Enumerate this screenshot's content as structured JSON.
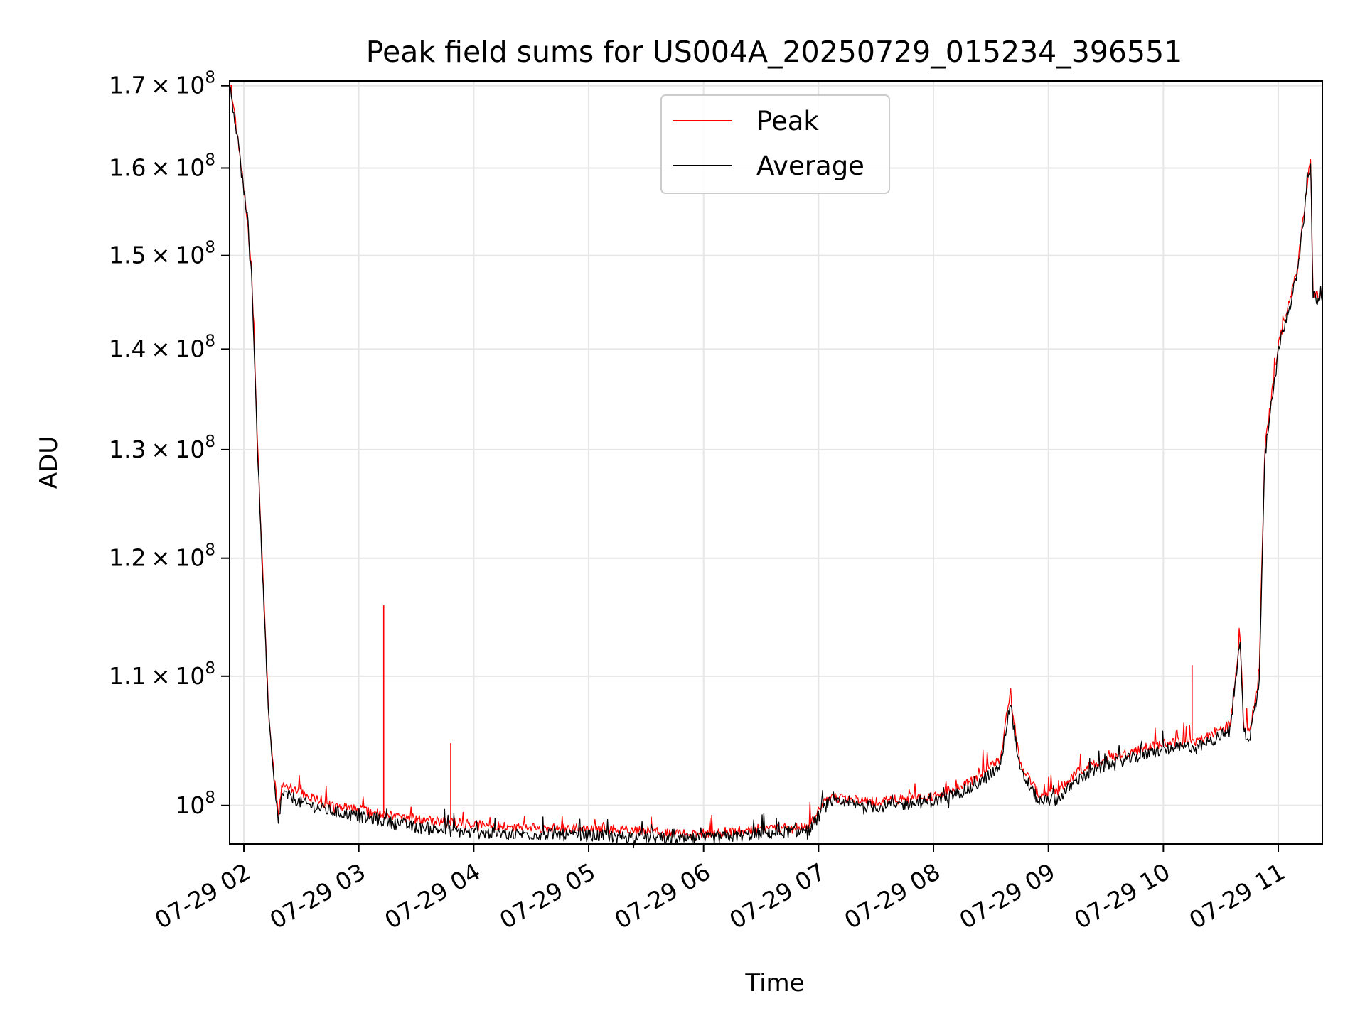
{
  "chart_data": {
    "type": "line",
    "title": "Peak field sums for US004A_20250729_015234_396551",
    "xlabel": "Time",
    "ylabel": "ADU",
    "yscale": "log",
    "ylim": [
      97200000,
      170600000
    ],
    "xlim": [
      "07-29 01:52:34",
      "07-29 11:23:00"
    ],
    "grid": true,
    "legend": "upper center",
    "x_ticks": [
      {
        "value": "07-29 02:00",
        "label": "07-29 02"
      },
      {
        "value": "07-29 03:00",
        "label": "07-29 03"
      },
      {
        "value": "07-29 04:00",
        "label": "07-29 04"
      },
      {
        "value": "07-29 05:00",
        "label": "07-29 05"
      },
      {
        "value": "07-29 06:00",
        "label": "07-29 06"
      },
      {
        "value": "07-29 07:00",
        "label": "07-29 07"
      },
      {
        "value": "07-29 08:00",
        "label": "07-29 08"
      },
      {
        "value": "07-29 09:00",
        "label": "07-29 09"
      },
      {
        "value": "07-29 10:00",
        "label": "07-29 10"
      },
      {
        "value": "07-29 11:00",
        "label": "07-29 11"
      }
    ],
    "y_ticks": [
      {
        "value": 100000000,
        "mant": "",
        "exp": "8"
      },
      {
        "value": 110000000,
        "mant": "1.1",
        "exp": "8"
      },
      {
        "value": 120000000,
        "mant": "1.2",
        "exp": "8"
      },
      {
        "value": 130000000,
        "mant": "1.3",
        "exp": "8"
      },
      {
        "value": 140000000,
        "mant": "1.4",
        "exp": "8"
      },
      {
        "value": 150000000,
        "mant": "1.5",
        "exp": "8"
      },
      {
        "value": 160000000,
        "mant": "1.6",
        "exp": "8"
      },
      {
        "value": 170000000,
        "mant": "1.7",
        "exp": "8"
      }
    ],
    "x": [
      "07-29 01:53",
      "07-29 01:57",
      "07-29 02:00",
      "07-29 02:04",
      "07-29 02:07",
      "07-29 02:10",
      "07-29 02:13",
      "07-29 02:16",
      "07-29 02:18",
      "07-29 02:20",
      "07-29 02:25",
      "07-29 02:30",
      "07-29 02:45",
      "07-29 03:00",
      "07-29 03:15",
      "07-29 03:30",
      "07-29 03:45",
      "07-29 04:00",
      "07-29 04:30",
      "07-29 05:00",
      "07-29 05:30",
      "07-29 05:45",
      "07-29 06:00",
      "07-29 06:30",
      "07-29 06:55",
      "07-29 07:05",
      "07-29 07:30",
      "07-29 08:00",
      "07-29 08:20",
      "07-29 08:35",
      "07-29 08:40",
      "07-29 08:45",
      "07-29 08:55",
      "07-29 09:05",
      "07-29 09:15",
      "07-29 09:30",
      "07-29 10:00",
      "07-29 10:20",
      "07-29 10:35",
      "07-29 10:40",
      "07-29 10:42",
      "07-29 10:45",
      "07-29 10:50",
      "07-29 10:53",
      "07-29 11:00",
      "07-29 11:10",
      "07-29 11:17",
      "07-29 11:18",
      "07-29 11:23"
    ],
    "series": [
      {
        "name": "Peak",
        "color": "#ff0000",
        "values": [
          170200000,
          163500000,
          157500000,
          148800000,
          131000000,
          118000000,
          107000000,
          101800000,
          99500000,
          101600000,
          101300000,
          100900000,
          100000000,
          99700000,
          99300000,
          99000000,
          98800000,
          98600000,
          98400000,
          98300000,
          98200000,
          97900000,
          98000000,
          98200000,
          98500000,
          100600000,
          100300000,
          100700000,
          101800000,
          103500000,
          108700000,
          103200000,
          100800000,
          101000000,
          102500000,
          103500000,
          104700000,
          105000000,
          106200000,
          113500000,
          106000000,
          105600000,
          110000000,
          130000000,
          140500000,
          148500000,
          161600000,
          146000000,
          145500000
        ]
      },
      {
        "name": "Average",
        "color": "#000000",
        "values": [
          169600000,
          163000000,
          157000000,
          148300000,
          130500000,
          117500000,
          106500000,
          101200000,
          98800000,
          100900000,
          100600000,
          100200000,
          99600000,
          99200000,
          98800000,
          98400000,
          98200000,
          98000000,
          97900000,
          97800000,
          97700000,
          97500000,
          97600000,
          97900000,
          98200000,
          100200000,
          99900000,
          100300000,
          101300000,
          102900000,
          108000000,
          102600000,
          100300000,
          100500000,
          101900000,
          103000000,
          104200000,
          104500000,
          105700000,
          113000000,
          105500000,
          105100000,
          109300000,
          129500000,
          140000000,
          148000000,
          161200000,
          145500000,
          145000000
        ]
      }
    ],
    "spikes": [
      {
        "series": "Peak",
        "x": "07-29 03:13",
        "value": 115900000
      },
      {
        "series": "Peak",
        "x": "07-29 03:48",
        "value": 104700000
      },
      {
        "series": "Peak",
        "x": "07-29 10:15",
        "value": 110900000
      }
    ]
  }
}
